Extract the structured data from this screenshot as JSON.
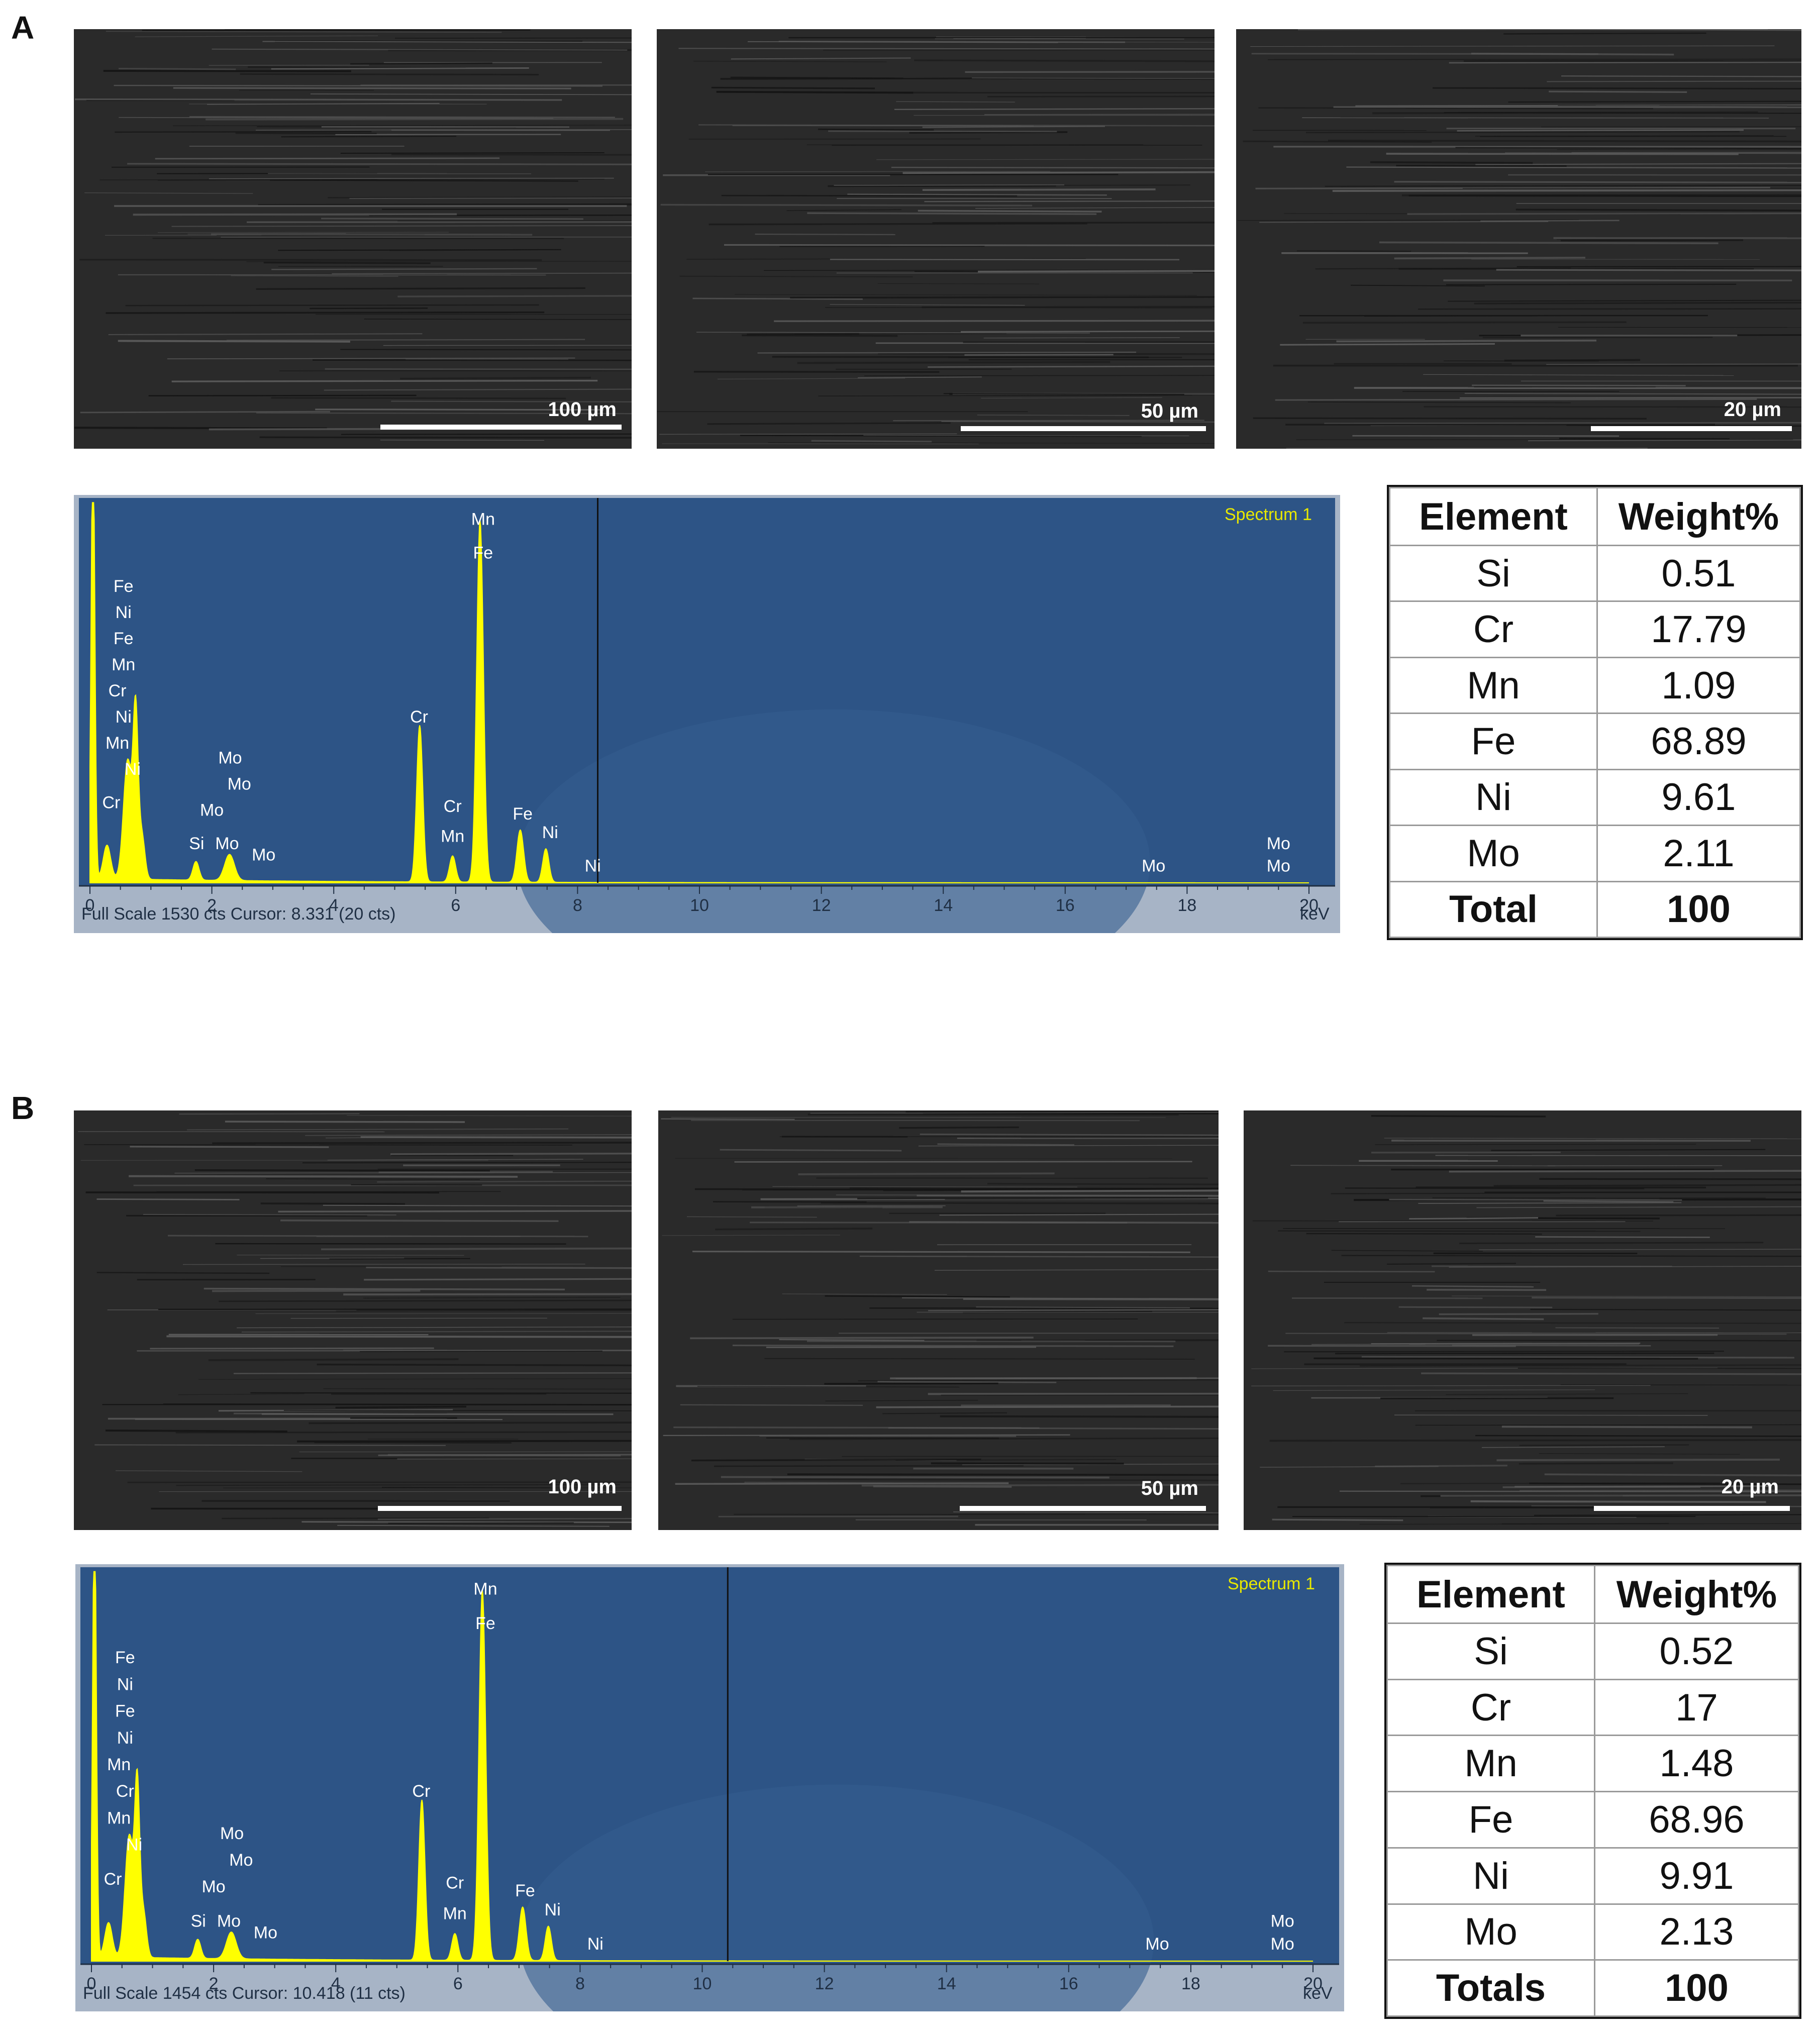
{
  "panels": [
    {
      "letter": "A",
      "sem_images": [
        {
          "scale_label": "100 µm"
        },
        {
          "scale_label": "50 µm"
        },
        {
          "scale_label": "20 µm"
        }
      ],
      "spectrum": {
        "title": "Spectrum 1",
        "footer": "Full Scale 1530 cts Cursor: 8.331  (20 cts)",
        "unit": "keV",
        "x_ticks": [
          "0",
          "2",
          "4",
          "6",
          "8",
          "10",
          "12",
          "14",
          "16",
          "18",
          "20"
        ],
        "cursor_kev": 8.331,
        "peak_labels": [
          "Fe",
          "Ni",
          "Fe",
          "Mn",
          "Cr",
          "Ni",
          "Mn",
          "Ni",
          "Cr",
          "Si",
          "Mo",
          "Mo",
          "Mo",
          "Mo",
          "Mo",
          "Cr",
          "Cr",
          "Mn",
          "Mn",
          "Fe",
          "Fe",
          "Ni",
          "Ni",
          "Mo",
          "Mo",
          "Mo"
        ]
      },
      "table": {
        "headers": [
          "Element",
          "Weight%"
        ],
        "rows": [
          [
            "Si",
            "0.51"
          ],
          [
            "Cr",
            "17.79"
          ],
          [
            "Mn",
            "1.09"
          ],
          [
            "Fe",
            "68.89"
          ],
          [
            "Ni",
            "9.61"
          ],
          [
            "Mo",
            "2.11"
          ]
        ],
        "total": [
          "Total",
          "100"
        ]
      }
    },
    {
      "letter": "B",
      "sem_images": [
        {
          "scale_label": "100 µm"
        },
        {
          "scale_label": "50 µm"
        },
        {
          "scale_label": "20 µm"
        }
      ],
      "spectrum": {
        "title": "Spectrum 1",
        "footer": "Full Scale 1454 cts Cursor: 10.418  (11 cts)",
        "unit": "keV",
        "x_ticks": [
          "0",
          "2",
          "4",
          "6",
          "8",
          "10",
          "12",
          "14",
          "16",
          "18",
          "20"
        ],
        "cursor_kev": 10.418,
        "peak_labels": [
          "Fe",
          "Ni",
          "Fe",
          "Ni",
          "Mn",
          "Cr",
          "Mn",
          "Ni",
          "Cr",
          "Si",
          "Mo",
          "Mo",
          "Mo",
          "Mo",
          "Mo",
          "Cr",
          "Cr",
          "Mn",
          "Mn",
          "Fe",
          "Fe",
          "Ni",
          "Ni",
          "Mo",
          "Mo",
          "Mo"
        ]
      },
      "table": {
        "headers": [
          "Element",
          "Weight%"
        ],
        "rows": [
          [
            "Si",
            "0.52"
          ],
          [
            "Cr",
            "17"
          ],
          [
            "Mn",
            "1.48"
          ],
          [
            "Fe",
            "68.96"
          ],
          [
            "Ni",
            "9.91"
          ],
          [
            "Mo",
            "2.13"
          ]
        ],
        "total": [
          "Totals",
          "100"
        ]
      }
    }
  ]
}
